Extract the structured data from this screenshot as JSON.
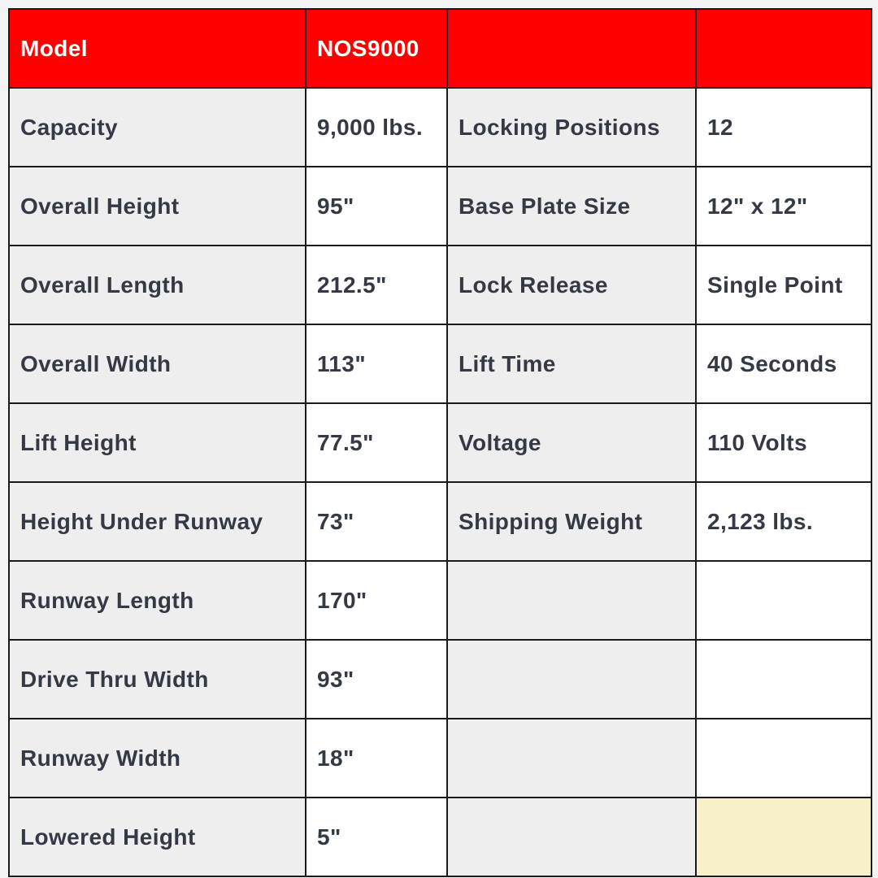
{
  "header": {
    "label": "Model",
    "value": "NOS9000",
    "col3": "",
    "col4": ""
  },
  "rows": [
    {
      "label": "Capacity",
      "value": "9,000 lbs.",
      "label2": "Locking Positions",
      "value2": "12"
    },
    {
      "label": "Overall Height",
      "value": "95\"",
      "label2": "Base Plate Size",
      "value2": "12\" x 12\""
    },
    {
      "label": "Overall Length",
      "value": "212.5\"",
      "label2": "Lock Release",
      "value2": "Single Point"
    },
    {
      "label": "Overall Width",
      "value": "113\"",
      "label2": "Lift Time",
      "value2": "40 Seconds"
    },
    {
      "label": "Lift Height",
      "value": "77.5\"",
      "label2": "Voltage",
      "value2": "110 Volts"
    },
    {
      "label": "Height Under Runway",
      "value": "73\"",
      "label2": "Shipping Weight",
      "value2": "2,123 lbs."
    },
    {
      "label": "Runway Length",
      "value": "170\"",
      "label2": "",
      "value2": ""
    },
    {
      "label": "Drive Thru Width",
      "value": "93\"",
      "label2": "",
      "value2": ""
    },
    {
      "label": "Runway Width",
      "value": "18\"",
      "label2": "",
      "value2": ""
    },
    {
      "label": "Lowered Height",
      "value": "5\"",
      "label2": "",
      "value2": ""
    }
  ],
  "colors": {
    "header": "#ff0000",
    "label_bg": "#eeeeef",
    "highlight": "#f7f0c8",
    "text": "#343a45"
  }
}
